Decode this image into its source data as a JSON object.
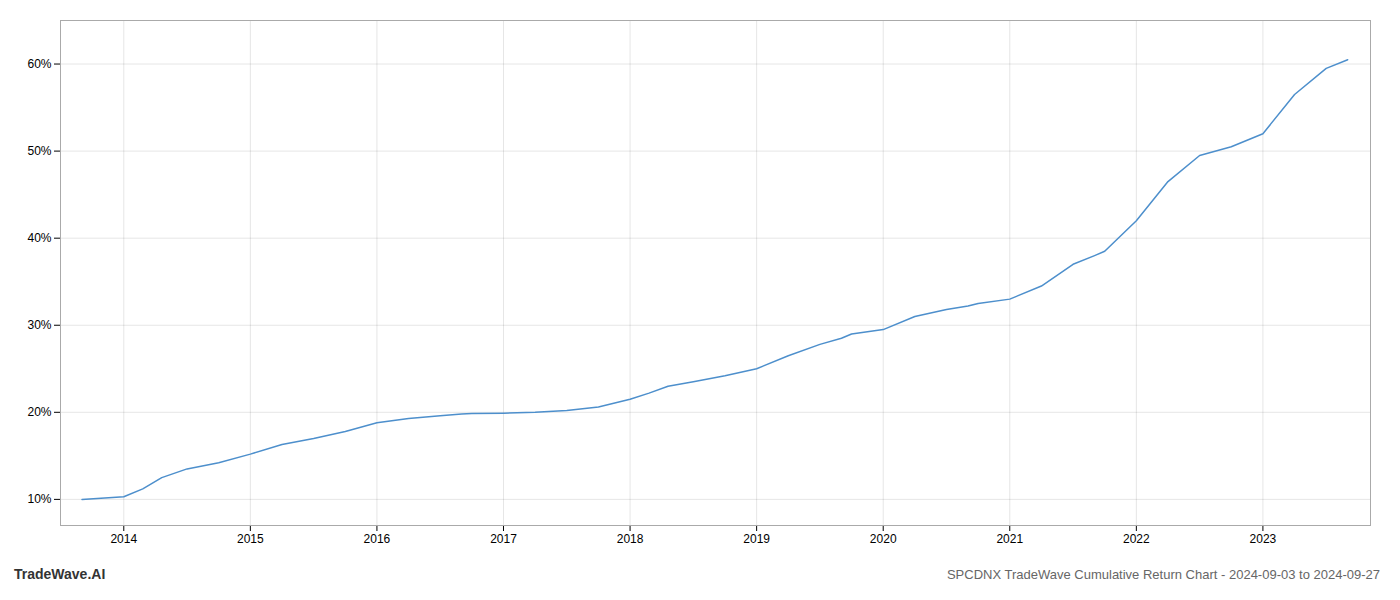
{
  "chart_data": {
    "type": "line",
    "title": "SPCDNX TradeWave Cumulative Return Chart - 2024-09-03 to 2024-09-27",
    "annotations": [
      "TradeWave.AI"
    ],
    "x": [
      2013.67,
      2014.0,
      2014.15,
      2014.3,
      2014.5,
      2014.75,
      2015.0,
      2015.25,
      2015.5,
      2015.75,
      2016.0,
      2016.25,
      2016.5,
      2016.67,
      2016.75,
      2017.0,
      2017.25,
      2017.5,
      2017.75,
      2018.0,
      2018.15,
      2018.3,
      2018.5,
      2018.75,
      2019.0,
      2019.25,
      2019.5,
      2019.67,
      2019.75,
      2020.0,
      2020.25,
      2020.5,
      2020.67,
      2020.75,
      2021.0,
      2021.25,
      2021.5,
      2021.67,
      2021.75,
      2022.0,
      2022.25,
      2022.5,
      2022.75,
      2023.0,
      2023.25,
      2023.5,
      2023.67
    ],
    "values": [
      10.0,
      10.3,
      11.2,
      12.5,
      13.5,
      14.2,
      15.2,
      16.3,
      17.0,
      17.8,
      18.8,
      19.3,
      19.6,
      19.8,
      19.85,
      19.9,
      20.0,
      20.2,
      20.6,
      21.5,
      22.2,
      23.0,
      23.5,
      24.2,
      25.0,
      26.5,
      27.8,
      28.5,
      29.0,
      29.5,
      31.0,
      31.8,
      32.2,
      32.5,
      33.0,
      34.5,
      37.0,
      38.0,
      38.5,
      42.0,
      46.5,
      49.5,
      50.5,
      52.0,
      56.5,
      59.5,
      60.5
    ],
    "color": "#4d8fcc",
    "xlim": [
      2013.5,
      2023.85
    ],
    "ylim": [
      7,
      65
    ],
    "xticks": [
      2014,
      2015,
      2016,
      2017,
      2018,
      2019,
      2020,
      2021,
      2022,
      2023
    ],
    "yticks": [
      {
        "value": 10,
        "label": "10%"
      },
      {
        "value": 20,
        "label": "20%"
      },
      {
        "value": 30,
        "label": "30%"
      },
      {
        "value": 40,
        "label": "40%"
      },
      {
        "value": 50,
        "label": "50%"
      },
      {
        "value": 60,
        "label": "60%"
      }
    ],
    "grid": true
  }
}
